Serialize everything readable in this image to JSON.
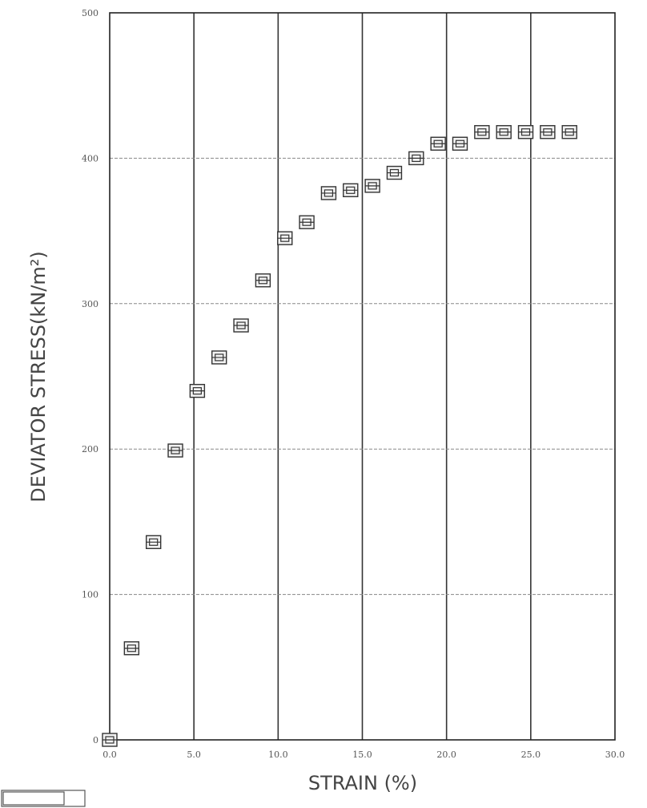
{
  "chart_data": {
    "type": "scatter",
    "title": "",
    "xlabel": "STRAIN (%)",
    "ylabel": "DEVIATOR STRESS(kN/m²)",
    "xlim": [
      0,
      30
    ],
    "ylim": [
      0,
      500
    ],
    "x_ticks": [
      0,
      5,
      10,
      15,
      20,
      25,
      30
    ],
    "x_tick_labels": [
      "0.0",
      "5.0",
      "10.0",
      "15.0",
      "20.0",
      "25.0",
      "30.0"
    ],
    "y_ticks": [
      0,
      100,
      200,
      300,
      400,
      500
    ],
    "y_tick_labels": [
      "0",
      "100",
      "200",
      "300",
      "400",
      "500"
    ],
    "grid": true,
    "legend": "none",
    "marker": "boxed-square",
    "series": [
      {
        "x": [
          0.0,
          1.3,
          2.6,
          3.9,
          5.2,
          6.5,
          7.8,
          9.1,
          10.4,
          11.7,
          13.0,
          14.3,
          15.6,
          16.9,
          18.2,
          19.5,
          20.8,
          22.1,
          23.4,
          24.7,
          26.0,
          27.3
        ],
        "y": [
          0,
          63,
          136,
          199,
          240,
          263,
          285,
          316,
          345,
          356,
          376,
          378,
          381,
          390,
          400,
          410,
          410,
          418,
          418,
          418,
          418,
          418
        ]
      }
    ],
    "colors": {
      "grid": "#333333",
      "marker": "#333333",
      "text": "#444444"
    }
  }
}
